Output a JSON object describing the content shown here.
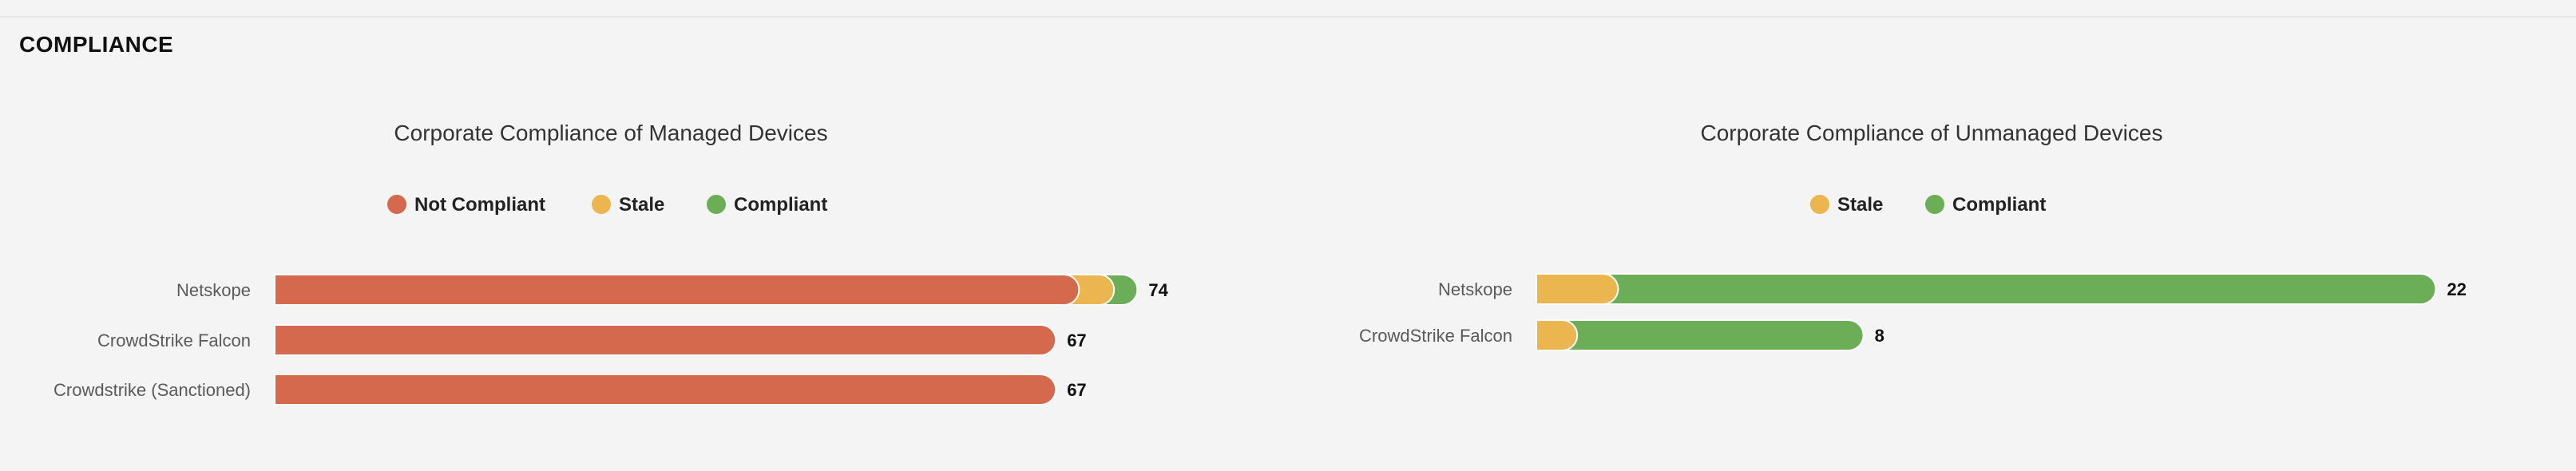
{
  "section": {
    "title": "COMPLIANCE"
  },
  "colors": {
    "not_compliant": "#d4694e",
    "stale": "#ebb54f",
    "compliant": "#6cae57"
  },
  "chart_data": [
    {
      "type": "bar",
      "orientation": "horizontal",
      "stacked": true,
      "title": "Corporate Compliance of Managed Devices",
      "legend_position": "top",
      "categories": [
        "Netskope",
        "CrowdStrike Falcon",
        "Crowdstrike (Sanctioned)"
      ],
      "series": [
        {
          "name": "Not Compliant",
          "color": "#d4694e",
          "values": [
            69,
            67,
            67
          ]
        },
        {
          "name": "Stale",
          "color": "#ebb54f",
          "values": [
            3,
            0,
            0
          ]
        },
        {
          "name": "Compliant",
          "color": "#6cae57",
          "values": [
            2,
            0,
            0
          ]
        }
      ],
      "totals": [
        74,
        67,
        67
      ],
      "grid": false
    },
    {
      "type": "bar",
      "orientation": "horizontal",
      "stacked": true,
      "title": "Corporate Compliance of Unmanaged Devices",
      "legend_position": "top",
      "categories": [
        "Netskope",
        "CrowdStrike Falcon"
      ],
      "series": [
        {
          "name": "Stale",
          "color": "#ebb54f",
          "values": [
            2,
            1
          ]
        },
        {
          "name": "Compliant",
          "color": "#6cae57",
          "values": [
            20,
            7
          ]
        }
      ],
      "totals": [
        22,
        8
      ],
      "grid": false
    }
  ]
}
